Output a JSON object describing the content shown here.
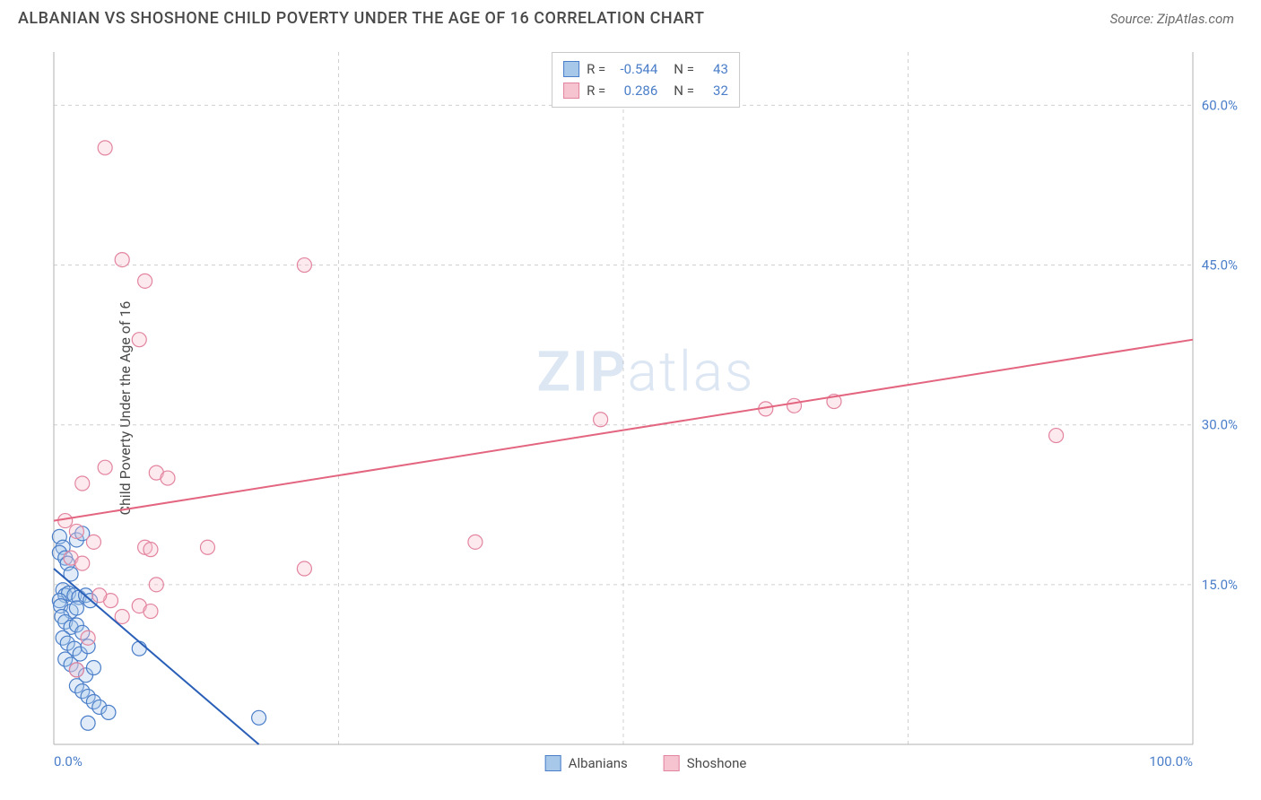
{
  "header": {
    "title": "ALBANIAN VS SHOSHONE CHILD POVERTY UNDER THE AGE OF 16 CORRELATION CHART",
    "source_label": "Source:",
    "source_name": "ZipAtlas.com"
  },
  "chart": {
    "type": "scatter",
    "ylabel": "Child Poverty Under the Age of 16",
    "watermark_a": "ZIP",
    "watermark_b": "atlas",
    "background_color": "#ffffff",
    "grid_color": "#d0d0d0",
    "axis_color": "#b0b0b0",
    "tick_color": "#4a7ec9",
    "label_color": "#4a4a4a",
    "xlim": [
      0,
      100
    ],
    "ylim": [
      0,
      65
    ],
    "xtick_labels": [
      "0.0%",
      "100.0%"
    ],
    "xtick_positions": [
      0,
      100
    ],
    "ytick_labels": [
      "15.0%",
      "30.0%",
      "45.0%",
      "60.0%"
    ],
    "ytick_positions": [
      15,
      30,
      45,
      60
    ],
    "vgrid_positions": [
      25,
      50,
      75
    ],
    "marker_radius": 8,
    "marker_opacity": 0.35,
    "line_width": 2,
    "series": [
      {
        "name": "Albanians",
        "color_fill": "#a8c8ea",
        "color_stroke": "#4a7ec9",
        "line_color": "#2a5fb8",
        "R_label": "R =",
        "R_value": "-0.544",
        "N_label": "N =",
        "N_value": "43",
        "trend": {
          "x1": 0,
          "y1": 16.5,
          "x2": 18,
          "y2": 0
        },
        "points": [
          [
            0.5,
            19.5
          ],
          [
            0.8,
            18.5
          ],
          [
            0.5,
            18.0
          ],
          [
            1.0,
            17.5
          ],
          [
            1.2,
            17.0
          ],
          [
            2.0,
            19.2
          ],
          [
            2.5,
            19.8
          ],
          [
            1.5,
            16.0
          ],
          [
            0.8,
            14.5
          ],
          [
            1.0,
            14.0
          ],
          [
            1.3,
            14.2
          ],
          [
            0.5,
            13.5
          ],
          [
            1.8,
            14.0
          ],
          [
            2.2,
            13.8
          ],
          [
            0.6,
            13.0
          ],
          [
            1.5,
            12.5
          ],
          [
            2.0,
            12.8
          ],
          [
            2.8,
            14.0
          ],
          [
            3.2,
            13.5
          ],
          [
            0.7,
            12.0
          ],
          [
            1.0,
            11.5
          ],
          [
            1.5,
            11.0
          ],
          [
            2.0,
            11.2
          ],
          [
            2.5,
            10.5
          ],
          [
            0.8,
            10.0
          ],
          [
            1.2,
            9.5
          ],
          [
            1.8,
            9.0
          ],
          [
            2.3,
            8.5
          ],
          [
            3.0,
            9.2
          ],
          [
            1.0,
            8.0
          ],
          [
            1.5,
            7.5
          ],
          [
            2.0,
            7.0
          ],
          [
            2.8,
            6.5
          ],
          [
            3.5,
            7.2
          ],
          [
            2.0,
            5.5
          ],
          [
            2.5,
            5.0
          ],
          [
            3.0,
            4.5
          ],
          [
            3.5,
            4.0
          ],
          [
            4.0,
            3.5
          ],
          [
            4.8,
            3.0
          ],
          [
            3.0,
            2.0
          ],
          [
            7.5,
            9.0
          ],
          [
            18.0,
            2.5
          ]
        ]
      },
      {
        "name": "Shoshone",
        "color_fill": "#f5c4d0",
        "color_stroke": "#e3849f",
        "line_color": "#e3657f",
        "R_label": "R =",
        "R_value": "0.286",
        "N_label": "N =",
        "N_value": "32",
        "trend": {
          "x1": 0,
          "y1": 21.0,
          "x2": 100,
          "y2": 38.0
        },
        "points": [
          [
            4.5,
            56.0
          ],
          [
            6.0,
            45.5
          ],
          [
            8.0,
            43.5
          ],
          [
            7.5,
            38.0
          ],
          [
            22.0,
            45.0
          ],
          [
            2.5,
            24.5
          ],
          [
            4.5,
            26.0
          ],
          [
            9.0,
            25.5
          ],
          [
            10.0,
            25.0
          ],
          [
            2.0,
            20.0
          ],
          [
            3.5,
            19.0
          ],
          [
            8.0,
            18.5
          ],
          [
            8.5,
            18.3
          ],
          [
            13.5,
            18.5
          ],
          [
            1.5,
            17.5
          ],
          [
            2.5,
            17.0
          ],
          [
            22.0,
            16.5
          ],
          [
            5.0,
            13.5
          ],
          [
            7.5,
            13.0
          ],
          [
            8.5,
            12.5
          ],
          [
            3.0,
            10.0
          ],
          [
            2.0,
            7.0
          ],
          [
            37.0,
            19.0
          ],
          [
            48.0,
            30.5
          ],
          [
            62.5,
            31.5
          ],
          [
            65.0,
            31.8
          ],
          [
            68.5,
            32.2
          ],
          [
            88.0,
            29.0
          ],
          [
            1.0,
            21.0
          ],
          [
            4.0,
            14.0
          ],
          [
            6.0,
            12.0
          ],
          [
            9.0,
            15.0
          ]
        ]
      }
    ],
    "legend_bottom": [
      {
        "label": "Albanians",
        "fill": "#a8c8ea",
        "stroke": "#4a7ec9"
      },
      {
        "label": "Shoshone",
        "fill": "#f5c4d0",
        "stroke": "#e3849f"
      }
    ]
  }
}
